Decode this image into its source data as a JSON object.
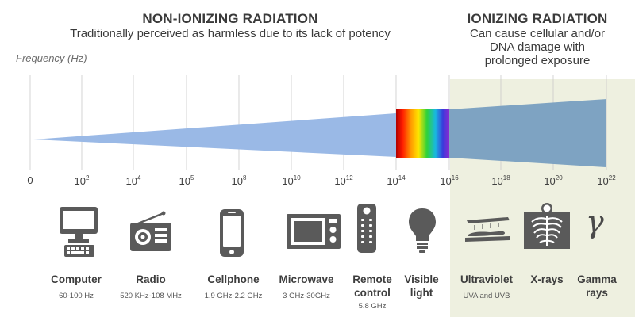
{
  "non_ionizing": {
    "title": "NON-IONIZING RADIATION",
    "subtitle": "Traditionally perceived as harmless due to its lack of potency"
  },
  "ionizing": {
    "title": "IONIZING RADIATION",
    "subtitle_lines": [
      "Can cause cellular and/or",
      "DNA damage with",
      "prolonged exposure"
    ]
  },
  "axis_label": "Frequency (Hz)",
  "ticks": [
    {
      "base": "0",
      "exp": ""
    },
    {
      "base": "10",
      "exp": "2"
    },
    {
      "base": "10",
      "exp": "4"
    },
    {
      "base": "10",
      "exp": "5"
    },
    {
      "base": "10",
      "exp": "8"
    },
    {
      "base": "10",
      "exp": "10"
    },
    {
      "base": "10",
      "exp": "12"
    },
    {
      "base": "10",
      "exp": "14"
    },
    {
      "base": "10",
      "exp": "16"
    },
    {
      "base": "10",
      "exp": "18"
    },
    {
      "base": "10",
      "exp": "20"
    },
    {
      "base": "10",
      "exp": "22"
    }
  ],
  "sources": [
    {
      "name": "Computer",
      "range": "60-100 Hz",
      "icon": "computer-icon"
    },
    {
      "name": "Radio",
      "range": "520 KHz-108 MHz",
      "icon": "radio-icon"
    },
    {
      "name": "Cellphone",
      "range": "1.9 GHz-2.2 GHz",
      "icon": "cellphone-icon"
    },
    {
      "name": "Microwave",
      "range": "3 GHz-30GHz",
      "icon": "microwave-icon"
    },
    {
      "name_lines": [
        "Remote",
        "control"
      ],
      "range": "5.8 GHz",
      "icon": "remote-control-icon"
    },
    {
      "name_lines": [
        "Visible",
        "light"
      ],
      "icon": "light-bulb-icon"
    },
    {
      "name": "Ultraviolet",
      "range": "UVA and UVB",
      "icon": "tanning-bed-icon"
    },
    {
      "name": "X-rays",
      "icon": "xray-icon"
    },
    {
      "name_lines": [
        "Gamma",
        "rays"
      ],
      "icon": "gamma-symbol-icon"
    }
  ],
  "gamma_symbol": "γ",
  "colors": {
    "wedge_non_ionizing": "#9ab9e6",
    "wedge_ionizing": "#7ea3c2",
    "ionizing_background": "#eef0e0",
    "icon_gray": "#5a5a5a",
    "text": "#3a3a3a"
  }
}
